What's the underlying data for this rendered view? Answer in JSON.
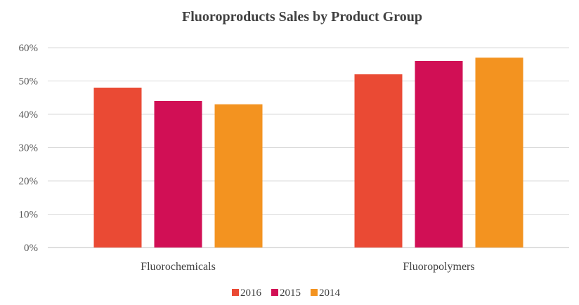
{
  "chart_data": {
    "type": "bar",
    "title": "Fluoroproducts Sales by Product Group",
    "xlabel": "",
    "ylabel": "",
    "categories": [
      "Fluorochemicals",
      "Fluoropolymers"
    ],
    "series": [
      {
        "name": "2016",
        "values": [
          48,
          52
        ],
        "color": "#ea4a34"
      },
      {
        "name": "2015",
        "values": [
          44,
          56
        ],
        "color": "#d10f55"
      },
      {
        "name": "2014",
        "values": [
          43,
          57
        ],
        "color": "#f39320"
      }
    ],
    "ylim": [
      0,
      60
    ],
    "yticks": [
      0,
      10,
      20,
      30,
      40,
      50,
      60
    ],
    "ytick_labels": [
      "0%",
      "10%",
      "20%",
      "30%",
      "40%",
      "50%",
      "60%"
    ],
    "grid": true,
    "legend_position": "bottom"
  }
}
